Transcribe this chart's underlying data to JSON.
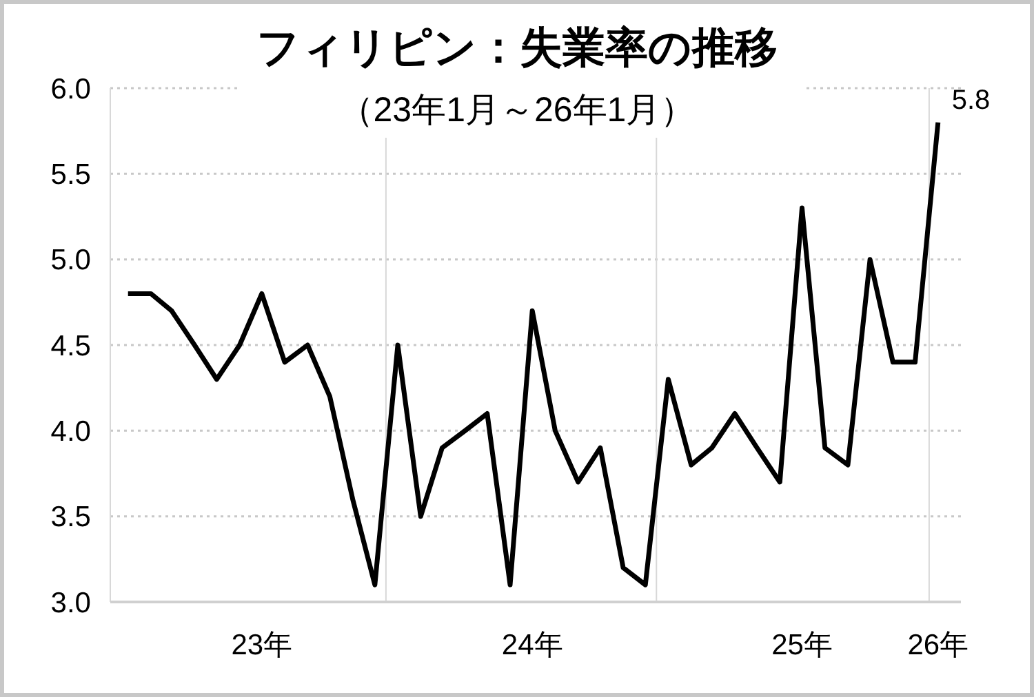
{
  "chart_data": {
    "type": "line",
    "title": "フィリピン：失業率の推移",
    "subtitle": "（23年1月～26年1月）",
    "x": [
      "2023-01",
      "2023-02",
      "2023-03",
      "2023-04",
      "2023-05",
      "2023-06",
      "2023-07",
      "2023-08",
      "2023-09",
      "2023-10",
      "2023-11",
      "2023-12",
      "2024-01",
      "2024-02",
      "2024-03",
      "2024-04",
      "2024-05",
      "2024-06",
      "2024-07",
      "2024-08",
      "2024-09",
      "2024-10",
      "2024-11",
      "2024-12",
      "2025-01",
      "2025-02",
      "2025-03",
      "2025-04",
      "2025-05",
      "2025-06",
      "2025-07",
      "2025-08",
      "2025-09",
      "2025-10",
      "2025-11",
      "2025-12",
      "2026-01"
    ],
    "series": [
      {
        "color": "#000000",
        "values": [
          4.8,
          4.8,
          4.7,
          4.5,
          4.3,
          4.5,
          4.8,
          4.4,
          4.5,
          4.2,
          3.6,
          3.1,
          4.5,
          3.5,
          3.9,
          4.0,
          4.1,
          3.1,
          4.7,
          4.0,
          3.7,
          3.9,
          3.2,
          3.1,
          4.3,
          3.8,
          3.9,
          4.1,
          3.9,
          3.7,
          5.3,
          3.9,
          3.8,
          5.0,
          4.4,
          4.4,
          5.8
        ],
        "value_labels": [
          null,
          null,
          null,
          null,
          null,
          null,
          null,
          null,
          null,
          null,
          null,
          null,
          null,
          null,
          null,
          null,
          null,
          null,
          null,
          null,
          null,
          null,
          null,
          null,
          null,
          null,
          null,
          null,
          null,
          null,
          null,
          null,
          null,
          null,
          null,
          null,
          "5.8"
        ]
      }
    ],
    "xlim": [
      "2022-12-08",
      "2026-02-01"
    ],
    "xticks": [
      {
        "value": "2023-07-01",
        "label": "23年"
      },
      {
        "value": "2023-12-16",
        "label": null
      },
      {
        "value": "2024-07-01",
        "label": "24年"
      },
      {
        "value": "2024-12-16",
        "label": null
      },
      {
        "value": "2025-07-01",
        "label": "25年"
      },
      {
        "value": "2025-12-20",
        "label": null
      },
      {
        "value": "2026-01-01",
        "label": "26年"
      }
    ],
    "ylim": [
      3,
      6
    ],
    "yticks": [
      {
        "value": 3,
        "label": "3.0"
      },
      {
        "value": 3.5,
        "label": "3.5"
      },
      {
        "value": 4,
        "label": "4.0"
      },
      {
        "value": 4.5,
        "label": "4.5"
      },
      {
        "value": 5,
        "label": "5.0"
      },
      {
        "value": 5.5,
        "label": "5.5"
      },
      {
        "value": 6,
        "label": "6.0"
      }
    ],
    "grid": true,
    "marker": "none",
    "line_style": "solid"
  }
}
